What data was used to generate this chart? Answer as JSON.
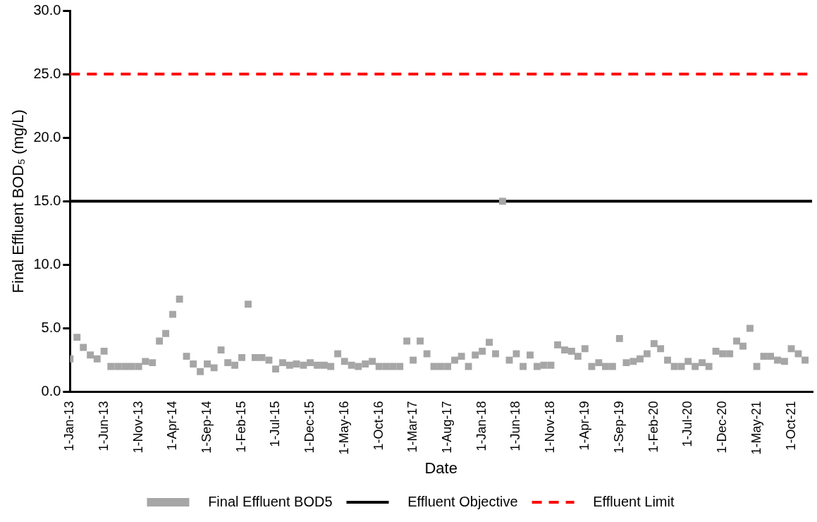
{
  "chart_data": {
    "type": "scatter",
    "xlabel": "Date",
    "ylabel": "Final Effluent BOD₅ (mg/L)",
    "x": [
      "2013-01",
      "2013-02",
      "2013-03",
      "2013-04",
      "2013-05",
      "2013-06",
      "2013-07",
      "2013-08",
      "2013-09",
      "2013-10",
      "2013-11",
      "2013-12",
      "2014-01",
      "2014-02",
      "2014-03",
      "2014-04",
      "2014-05",
      "2014-06",
      "2014-07",
      "2014-08",
      "2014-09",
      "2014-10",
      "2014-11",
      "2014-12",
      "2015-01",
      "2015-02",
      "2015-03",
      "2015-04",
      "2015-05",
      "2015-06",
      "2015-07",
      "2015-08",
      "2015-09",
      "2015-10",
      "2015-11",
      "2015-12",
      "2016-01",
      "2016-02",
      "2016-03",
      "2016-04",
      "2016-05",
      "2016-06",
      "2016-07",
      "2016-08",
      "2016-09",
      "2016-10",
      "2016-11",
      "2016-12",
      "2017-01",
      "2017-02",
      "2017-03",
      "2017-04",
      "2017-05",
      "2017-06",
      "2017-07",
      "2017-08",
      "2017-09",
      "2017-10",
      "2017-11",
      "2017-12",
      "2018-01",
      "2018-02",
      "2018-03",
      "2018-04",
      "2018-05",
      "2018-06",
      "2018-07",
      "2018-08",
      "2018-09",
      "2018-10",
      "2018-11",
      "2018-12",
      "2019-01",
      "2019-02",
      "2019-03",
      "2019-04",
      "2019-05",
      "2019-06",
      "2019-07",
      "2019-08",
      "2019-09",
      "2019-10",
      "2019-11",
      "2019-12",
      "2020-01",
      "2020-02",
      "2020-03",
      "2020-04",
      "2020-05",
      "2020-06",
      "2020-07",
      "2020-08",
      "2020-09",
      "2020-10",
      "2020-11",
      "2020-12",
      "2021-01",
      "2021-02",
      "2021-03",
      "2021-04",
      "2021-05",
      "2021-06",
      "2021-07",
      "2021-08",
      "2021-09",
      "2021-10",
      "2021-11",
      "2021-12"
    ],
    "series": [
      {
        "name": "Final Effluent BOD5",
        "color": "#a6a6a6",
        "values": [
          2.6,
          4.3,
          3.5,
          2.9,
          2.6,
          3.2,
          2.0,
          2.0,
          2.0,
          2.0,
          2.0,
          2.4,
          2.3,
          4.0,
          4.6,
          6.1,
          7.3,
          2.8,
          2.2,
          1.6,
          2.2,
          1.9,
          3.3,
          2.3,
          2.1,
          2.7,
          6.9,
          2.7,
          2.7,
          2.5,
          1.8,
          2.3,
          2.1,
          2.2,
          2.1,
          2.3,
          2.1,
          2.1,
          2.0,
          3.0,
          2.4,
          2.1,
          2.0,
          2.2,
          2.4,
          2.0,
          2.0,
          2.0,
          2.0,
          4.0,
          2.5,
          4.0,
          3.0,
          2.0,
          2.0,
          2.0,
          2.5,
          2.8,
          2.0,
          2.9,
          3.2,
          3.9,
          3.0,
          15.0,
          2.5,
          3.0,
          2.0,
          2.9,
          2.0,
          2.1,
          2.1,
          3.7,
          3.3,
          3.2,
          2.8,
          3.4,
          2.0,
          2.3,
          2.0,
          2.0,
          4.2,
          2.3,
          2.4,
          2.6,
          3.0,
          3.8,
          3.4,
          2.5,
          2.0,
          2.0,
          2.4,
          2.0,
          2.3,
          2.0,
          3.2,
          3.0,
          3.0,
          4.0,
          3.6,
          5.0,
          2.0,
          2.8,
          2.8,
          2.5,
          2.4,
          3.4,
          3.0,
          2.5
        ]
      }
    ],
    "ref_lines": [
      {
        "axis": "y",
        "value": 15,
        "label": "Effluent Objective",
        "color": "#000000",
        "line_style": "solid"
      },
      {
        "axis": "y",
        "value": 25,
        "label": "Effluent Limit",
        "color": "#ff0000",
        "line_style": "dashed"
      }
    ],
    "marker": "square",
    "legend": "bottom",
    "grid": false,
    "xlim": [
      "2013-01-01",
      "2022-01-01"
    ],
    "xticks": [
      {
        "value": "2013-01-01",
        "label": "1-Jan-13"
      },
      {
        "value": "2013-06-01",
        "label": "1-Jun-13"
      },
      {
        "value": "2013-11-01",
        "label": "1-Nov-13"
      },
      {
        "value": "2014-04-01",
        "label": "1-Apr-14"
      },
      {
        "value": "2014-09-01",
        "label": "1-Sep-14"
      },
      {
        "value": "2015-02-01",
        "label": "1-Feb-15"
      },
      {
        "value": "2015-07-01",
        "label": "1-Jul-15"
      },
      {
        "value": "2015-12-01",
        "label": "1-Dec-15"
      },
      {
        "value": "2016-05-01",
        "label": "1-May-16"
      },
      {
        "value": "2016-10-01",
        "label": "1-Oct-16"
      },
      {
        "value": "2017-03-01",
        "label": "1-Mar-17"
      },
      {
        "value": "2017-08-01",
        "label": "1-Aug-17"
      },
      {
        "value": "2018-01-01",
        "label": "1-Jan-18"
      },
      {
        "value": "2018-06-01",
        "label": "1-Jun-18"
      },
      {
        "value": "2018-11-01",
        "label": "1-Nov-18"
      },
      {
        "value": "2019-04-01",
        "label": "1-Apr-19"
      },
      {
        "value": "2019-09-01",
        "label": "1-Sep-19"
      },
      {
        "value": "2020-02-01",
        "label": "1-Feb-20"
      },
      {
        "value": "2020-07-01",
        "label": "1-Jul-20"
      },
      {
        "value": "2020-12-01",
        "label": "1-Dec-20"
      },
      {
        "value": "2021-05-01",
        "label": "1-May-21"
      },
      {
        "value": "2021-10-01",
        "label": "1-Oct-21"
      }
    ],
    "ylim": [
      0,
      30
    ],
    "yticks": [
      {
        "value": 0,
        "label": "0.0"
      },
      {
        "value": 5,
        "label": "5.0"
      },
      {
        "value": 10,
        "label": "10.0"
      },
      {
        "value": 15,
        "label": "15.0"
      },
      {
        "value": 20,
        "label": "20.0"
      },
      {
        "value": 25,
        "label": "25.0"
      },
      {
        "value": 30,
        "label": "30.0"
      }
    ]
  }
}
